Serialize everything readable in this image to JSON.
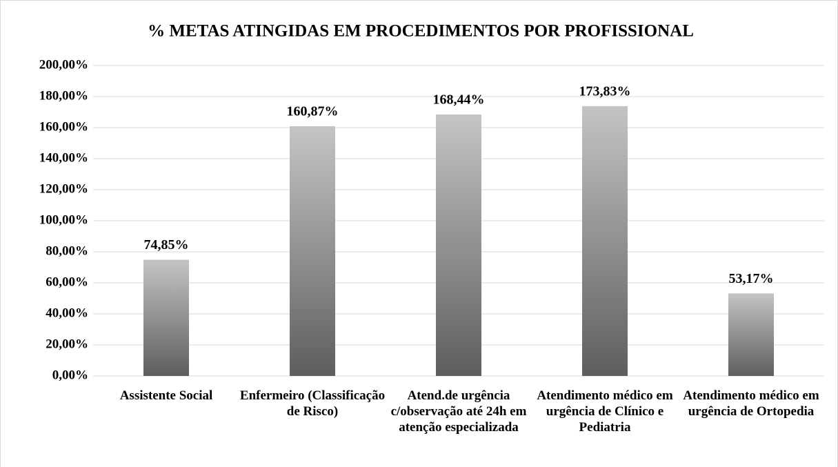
{
  "chart_data": {
    "type": "bar",
    "title": "% METAS ATINGIDAS EM PROCEDIMENTOS POR PROFISSIONAL",
    "categories": [
      "Assistente Social",
      "Enfermeiro (Classificação de Risco)",
      "Atend.de urgência c/observação até 24h em atenção especializada",
      "Atendimento médico em urgência de Clínico e Pediatria",
      "Atendimento médico em urgência de Ortopedia"
    ],
    "values": [
      74.85,
      160.87,
      168.44,
      173.83,
      53.17
    ],
    "value_labels": [
      "74,85%",
      "160,87%",
      "168,44%",
      "173,83%",
      "53,17%"
    ],
    "ylim": [
      0,
      200
    ],
    "yticks": [
      {
        "value": 0,
        "label": "0,00%"
      },
      {
        "value": 20,
        "label": "20,00%"
      },
      {
        "value": 40,
        "label": "40,00%"
      },
      {
        "value": 60,
        "label": "60,00%"
      },
      {
        "value": 80,
        "label": "80,00%"
      },
      {
        "value": 100,
        "label": "100,00%"
      },
      {
        "value": 120,
        "label": "120,00%"
      },
      {
        "value": 140,
        "label": "140,00%"
      },
      {
        "value": 160,
        "label": "160,00%"
      },
      {
        "value": 180,
        "label": "180,00%"
      },
      {
        "value": 200,
        "label": "200,00%"
      }
    ],
    "grid": true
  }
}
